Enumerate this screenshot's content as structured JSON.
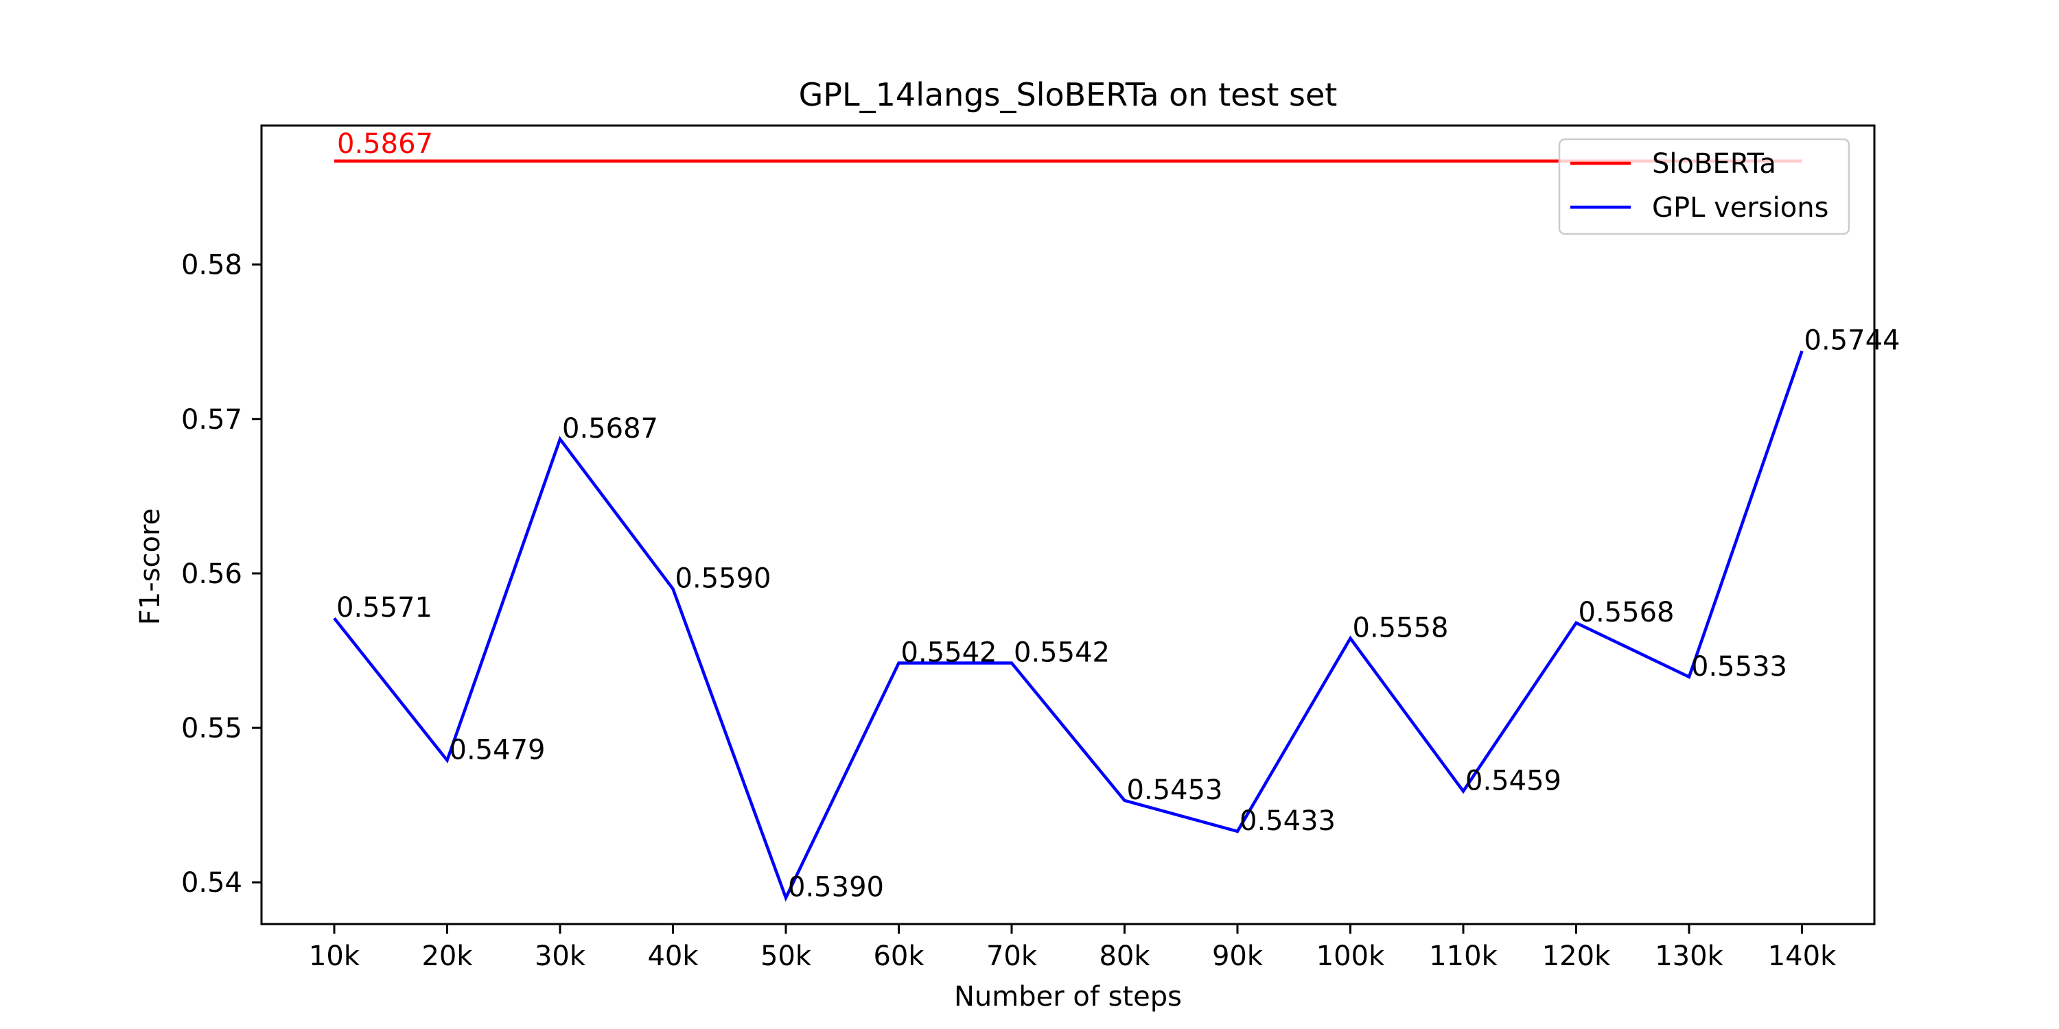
{
  "chart_data": {
    "type": "line",
    "title": "GPL_14langs_SloBERTa on test set",
    "xlabel": "Number of steps",
    "ylabel": "F1-score",
    "categories": [
      "10k",
      "20k",
      "30k",
      "40k",
      "50k",
      "60k",
      "70k",
      "80k",
      "90k",
      "100k",
      "110k",
      "120k",
      "130k",
      "140k"
    ],
    "ylim": [
      0.5373,
      0.589
    ],
    "yticks": [
      0.54,
      0.55,
      0.56,
      0.57,
      0.58
    ],
    "ytick_labels": [
      "0.54",
      "0.55",
      "0.56",
      "0.57",
      "0.58"
    ],
    "grid": false,
    "legend_position": "top-right",
    "series": [
      {
        "name": "SloBERTa",
        "color": "#ff0000",
        "values": [
          0.5867,
          0.5867,
          0.5867,
          0.5867,
          0.5867,
          0.5867,
          0.5867,
          0.5867,
          0.5867,
          0.5867,
          0.5867,
          0.5867,
          0.5867,
          0.5867
        ],
        "point_labels": [
          "0.5867"
        ]
      },
      {
        "name": "GPL versions",
        "color": "#0000ff",
        "values": [
          0.5571,
          0.5479,
          0.5687,
          0.559,
          0.539,
          0.5542,
          0.5542,
          0.5453,
          0.5433,
          0.5558,
          0.5459,
          0.5568,
          0.5533,
          0.5744
        ],
        "point_labels": [
          "0.5571",
          "0.5479",
          "0.5687",
          "0.5590",
          "0.5390",
          "0.5542",
          "0.5542",
          "0.5453",
          "0.5433",
          "0.5558",
          "0.5459",
          "0.5568",
          "0.5533",
          "0.5744"
        ]
      }
    ]
  }
}
